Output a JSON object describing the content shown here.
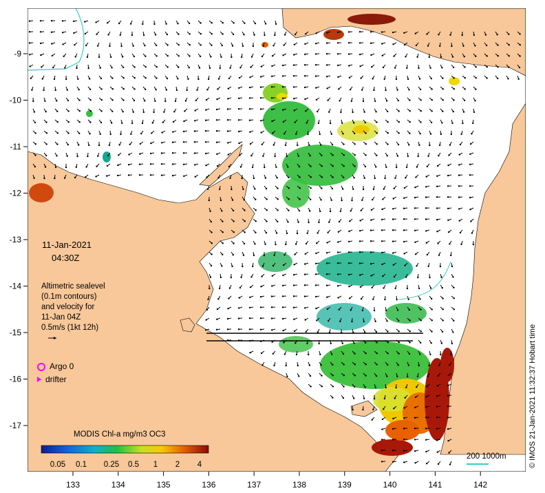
{
  "map": {
    "date": "11-Jan-2021",
    "time": "04:30Z",
    "description": [
      "Altimetric sealevel",
      "(0.1m contours)",
      "and velocity for",
      "11-Jan 04Z",
      "0.5m/s (1kt 12h)"
    ],
    "legend": {
      "argo_label": "Argo 0",
      "drifter_label": "drifter"
    },
    "colorbar": {
      "title": "MODIS Chl-a mg/m3 OC3",
      "ticks": [
        "0.05",
        "0.1",
        "0.25",
        "0.5",
        "1",
        "2",
        "4"
      ],
      "scale": "log"
    },
    "scale_bar": {
      "label": "200  1000m",
      "color": "#33cccc"
    },
    "credit": "© IMOS 21-Jan-2021 11:32:37 Hobart time",
    "x_axis": {
      "ticks": [
        "133",
        "134",
        "135",
        "136",
        "137",
        "138",
        "139",
        "140",
        "141",
        "142"
      ],
      "units": "degrees E"
    },
    "y_axis": {
      "ticks": [
        "-9",
        "-10",
        "-11",
        "-12",
        "-13",
        "-14",
        "-15",
        "-16",
        "-17"
      ],
      "units": "degrees"
    },
    "colors": {
      "land": "#f8c89a",
      "ocean": "#ffffff",
      "argo": "#ff00ff",
      "drifter": "#ff00ff",
      "contour": "#33cccc",
      "chl_low": "#0a1f8f",
      "chl_high": "#8b0a0a"
    }
  }
}
